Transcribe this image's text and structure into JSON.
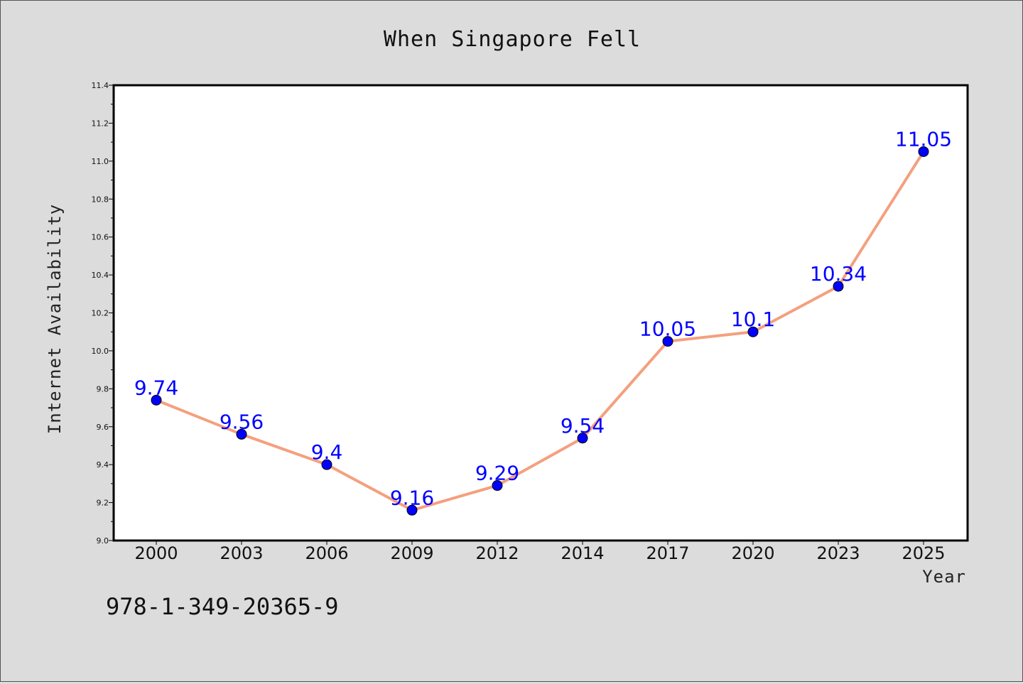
{
  "chart_data": {
    "type": "line",
    "title": "When Singapore Fell",
    "xlabel": "Year",
    "ylabel": "Internet Availability",
    "categories": [
      "2000",
      "2003",
      "2006",
      "2009",
      "2012",
      "2014",
      "2017",
      "2020",
      "2023",
      "2025"
    ],
    "series": [
      {
        "values": [
          9.74,
          9.56,
          9.4,
          9.16,
          9.29,
          9.54,
          10.05,
          10.1,
          10.34,
          11.05
        ],
        "labels": [
          "9.74",
          "9.56",
          "9.4",
          "9.16",
          "9.29",
          "9.54",
          "10.05",
          "10.1",
          "10.34",
          "11.05"
        ],
        "line_color": "#f4a07f",
        "marker_color": "#0000ff"
      }
    ],
    "ylim": [
      9.0,
      11.4
    ],
    "yticks": [
      "9.0",
      "9.2",
      "9.4",
      "9.6",
      "9.8",
      "10.0",
      "10.2",
      "10.4",
      "10.6",
      "10.8",
      "11.0",
      "11.2",
      "11.4"
    ],
    "grid": false,
    "legend": "none"
  },
  "annotation": "978-1-349-20365-9",
  "colors": {
    "background": "#dcdcdc",
    "plot_background": "#ffffff",
    "data_label": "#0000ff"
  }
}
